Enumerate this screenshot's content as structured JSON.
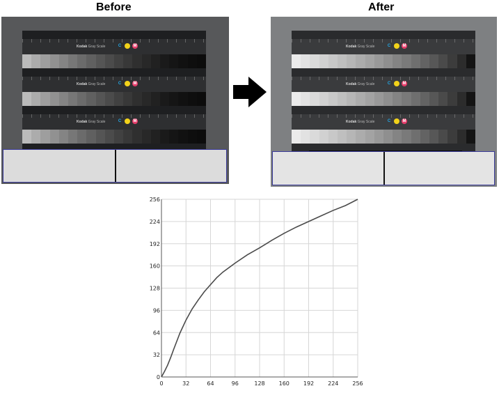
{
  "captions": {
    "before": "Before",
    "after": "After"
  },
  "panels": {
    "brand": "Kodak",
    "scale_name": "Gray Scale",
    "dots": [
      "C",
      "",
      "M"
    ],
    "dot_colors": [
      "#22a8e8",
      "#f2d21a",
      "#e63c6a"
    ]
  },
  "arrow_icon": "right-arrow-icon",
  "chart_data": {
    "type": "line",
    "title": "",
    "xlabel": "",
    "ylabel": "",
    "xlim": [
      0,
      256
    ],
    "ylim": [
      0,
      256
    ],
    "xticks": [
      0,
      32,
      64,
      96,
      128,
      160,
      192,
      224,
      256
    ],
    "yticks": [
      0,
      32,
      64,
      96,
      128,
      160,
      192,
      224,
      256
    ],
    "grid": true,
    "series": [
      {
        "name": "",
        "color": "#4a4a4a",
        "points": [
          [
            0,
            0
          ],
          [
            4,
            8
          ],
          [
            8,
            17
          ],
          [
            12,
            28
          ],
          [
            16,
            40
          ],
          [
            24,
            63
          ],
          [
            32,
            82
          ],
          [
            40,
            98
          ],
          [
            48,
            111
          ],
          [
            56,
            123
          ],
          [
            64,
            133
          ],
          [
            72,
            143
          ],
          [
            80,
            151
          ],
          [
            96,
            164
          ],
          [
            112,
            176
          ],
          [
            128,
            186
          ],
          [
            144,
            197
          ],
          [
            160,
            207
          ],
          [
            176,
            216
          ],
          [
            192,
            224
          ],
          [
            208,
            232
          ],
          [
            224,
            240
          ],
          [
            240,
            247
          ],
          [
            256,
            256
          ]
        ]
      }
    ]
  }
}
